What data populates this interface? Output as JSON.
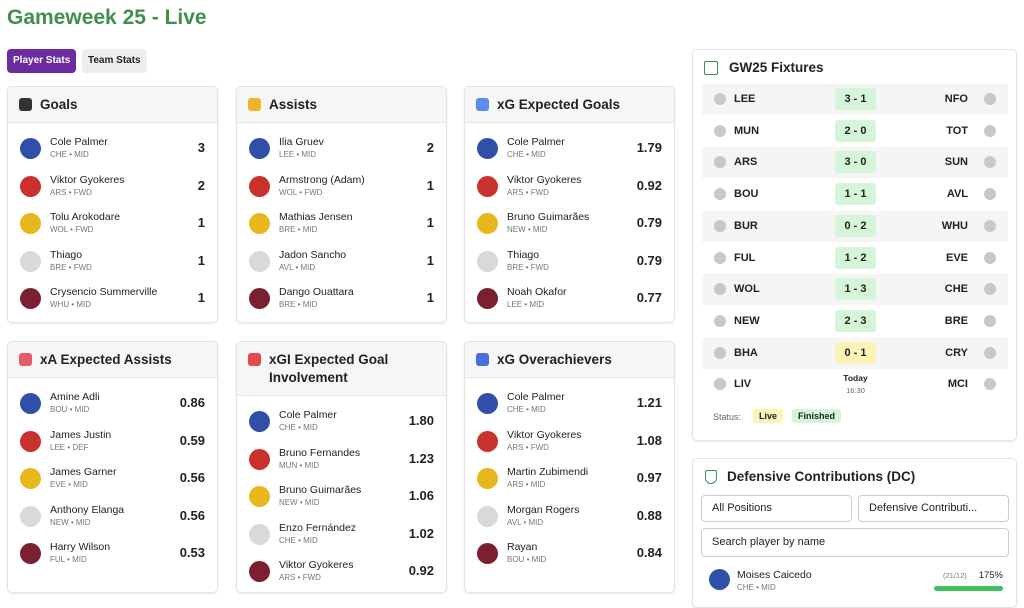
{
  "header": {
    "title": "Gameweek 25 - Live"
  },
  "tabs": [
    "Player Stats",
    "Team Stats"
  ],
  "cards": [
    {
      "title": "Goals",
      "rows": [
        {
          "name": "Cole Palmer",
          "team": "CHE",
          "position": "MID",
          "value": "3"
        },
        {
          "name": "Viktor Gyokeres",
          "team": "ARS",
          "position": "FWD",
          "value": "2"
        },
        {
          "name": "Tolu Arokodare",
          "team": "WOL",
          "position": "FWD",
          "value": "1"
        },
        {
          "name": "Thiago",
          "team": "BRE",
          "position": "FWD",
          "value": "1"
        },
        {
          "name": "Crysencio Summerville",
          "team": "WHU",
          "position": "MID",
          "value": "1"
        }
      ]
    },
    {
      "title": "Assists",
      "rows": [
        {
          "name": "Ilia Gruev",
          "team": "LEE",
          "position": "MID",
          "value": "2"
        },
        {
          "name": "Armstrong (Adam)",
          "team": "WOL",
          "position": "FWD",
          "value": "1"
        },
        {
          "name": "Mathias Jensen",
          "team": "BRE",
          "position": "MID",
          "value": "1"
        },
        {
          "name": "Jadon Sancho",
          "team": "AVL",
          "position": "MID",
          "value": "1"
        },
        {
          "name": "Dango Ouattara",
          "team": "BRE",
          "position": "MID",
          "value": "1"
        }
      ]
    },
    {
      "title": "xG Expected Goals",
      "rows": [
        {
          "name": "Cole Palmer",
          "team": "CHE",
          "position": "MID",
          "value": "1.79"
        },
        {
          "name": "Viktor Gyokeres",
          "team": "ARS",
          "position": "FWD",
          "value": "0.92"
        },
        {
          "name": "Bruno Guimarães",
          "team": "NEW",
          "position": "MID",
          "value": "0.79"
        },
        {
          "name": "Thiago",
          "team": "BRE",
          "position": "FWD",
          "value": "0.79"
        },
        {
          "name": "Noah Okafor",
          "team": "LEE",
          "position": "MID",
          "value": "0.77"
        }
      ]
    },
    {
      "title": "xA Expected Assists",
      "rows": [
        {
          "name": "Amine Adli",
          "team": "BOU",
          "position": "MID",
          "value": "0.86"
        },
        {
          "name": "James Justin",
          "team": "LEE",
          "position": "DEF",
          "value": "0.59"
        },
        {
          "name": "James Garner",
          "team": "EVE",
          "position": "MID",
          "value": "0.56"
        },
        {
          "name": "Anthony Elanga",
          "team": "NEW",
          "position": "MID",
          "value": "0.56"
        },
        {
          "name": "Harry Wilson",
          "team": "FUL",
          "position": "MID",
          "value": "0.53"
        }
      ]
    },
    {
      "title": "xGI Expected Goal Involvement",
      "rows": [
        {
          "name": "Cole Palmer",
          "team": "CHE",
          "position": "MID",
          "value": "1.80"
        },
        {
          "name": "Bruno Fernandes",
          "team": "MUN",
          "position": "MID",
          "value": "1.23"
        },
        {
          "name": "Bruno Guimarães",
          "team": "NEW",
          "position": "MID",
          "value": "1.06"
        },
        {
          "name": "Enzo Fernández",
          "team": "CHE",
          "position": "MID",
          "value": "1.02"
        },
        {
          "name": "Viktor Gyokeres",
          "team": "ARS",
          "position": "FWD",
          "value": "0.92"
        }
      ]
    },
    {
      "title": "xG Overachievers",
      "rows": [
        {
          "name": "Cole Palmer",
          "team": "CHE",
          "position": "MID",
          "value": "1.21"
        },
        {
          "name": "Viktor Gyokeres",
          "team": "ARS",
          "position": "FWD",
          "value": "1.08"
        },
        {
          "name": "Martin Zubimendi",
          "team": "ARS",
          "position": "MID",
          "value": "0.97"
        },
        {
          "name": "Morgan Rogers",
          "team": "AVL",
          "position": "MID",
          "value": "0.88"
        },
        {
          "name": "Rayan",
          "team": "BOU",
          "position": "MID",
          "value": "0.84"
        }
      ]
    }
  ],
  "fixtures": {
    "title": "GW25 Fixtures",
    "rows": [
      {
        "home": "LEE",
        "score": "3 - 1",
        "away": "NFO",
        "color": "#d5f5d8"
      },
      {
        "home": "MUN",
        "score": "2 - 0",
        "away": "TOT",
        "color": "#d5f5d8"
      },
      {
        "home": "ARS",
        "score": "3 - 0",
        "away": "SUN",
        "color": "#d5f5d8"
      },
      {
        "home": "BOU",
        "score": "1 - 1",
        "away": "AVL",
        "color": "#d5f5d8"
      },
      {
        "home": "BUR",
        "score": "0 - 2",
        "away": "WHU",
        "color": "#d5f5d8"
      },
      {
        "home": "FUL",
        "score": "1 - 2",
        "away": "EVE",
        "color": "#d5f5d8"
      },
      {
        "home": "WOL",
        "score": "1 - 3",
        "away": "CHE",
        "color": "#d5f5d8"
      },
      {
        "home": "NEW",
        "score": "2 - 3",
        "away": "BRE",
        "color": "#d5f5d8"
      },
      {
        "home": "BHA",
        "score": "0 - 1",
        "away": "CRY",
        "color": "#fdf3b8"
      },
      {
        "home": "LIV",
        "day": "Today",
        "time": "16:30",
        "away": "MCI"
      }
    ],
    "status_label": "Status:",
    "statuses": [
      {
        "label": "Live",
        "color": "#fdf3b8"
      },
      {
        "label": "Finished",
        "color": "#d5f5d8"
      }
    ]
  },
  "defensive": {
    "title": "Defensive Contributions (DC)",
    "filters": [
      "All Positions",
      "Defensive Contributi..."
    ],
    "search_placeholder": "Search player by name",
    "player": {
      "name": "Moises Caicedo",
      "team": "CHE",
      "position": "MID",
      "count": "(21/12)",
      "percent": "175%"
    }
  }
}
